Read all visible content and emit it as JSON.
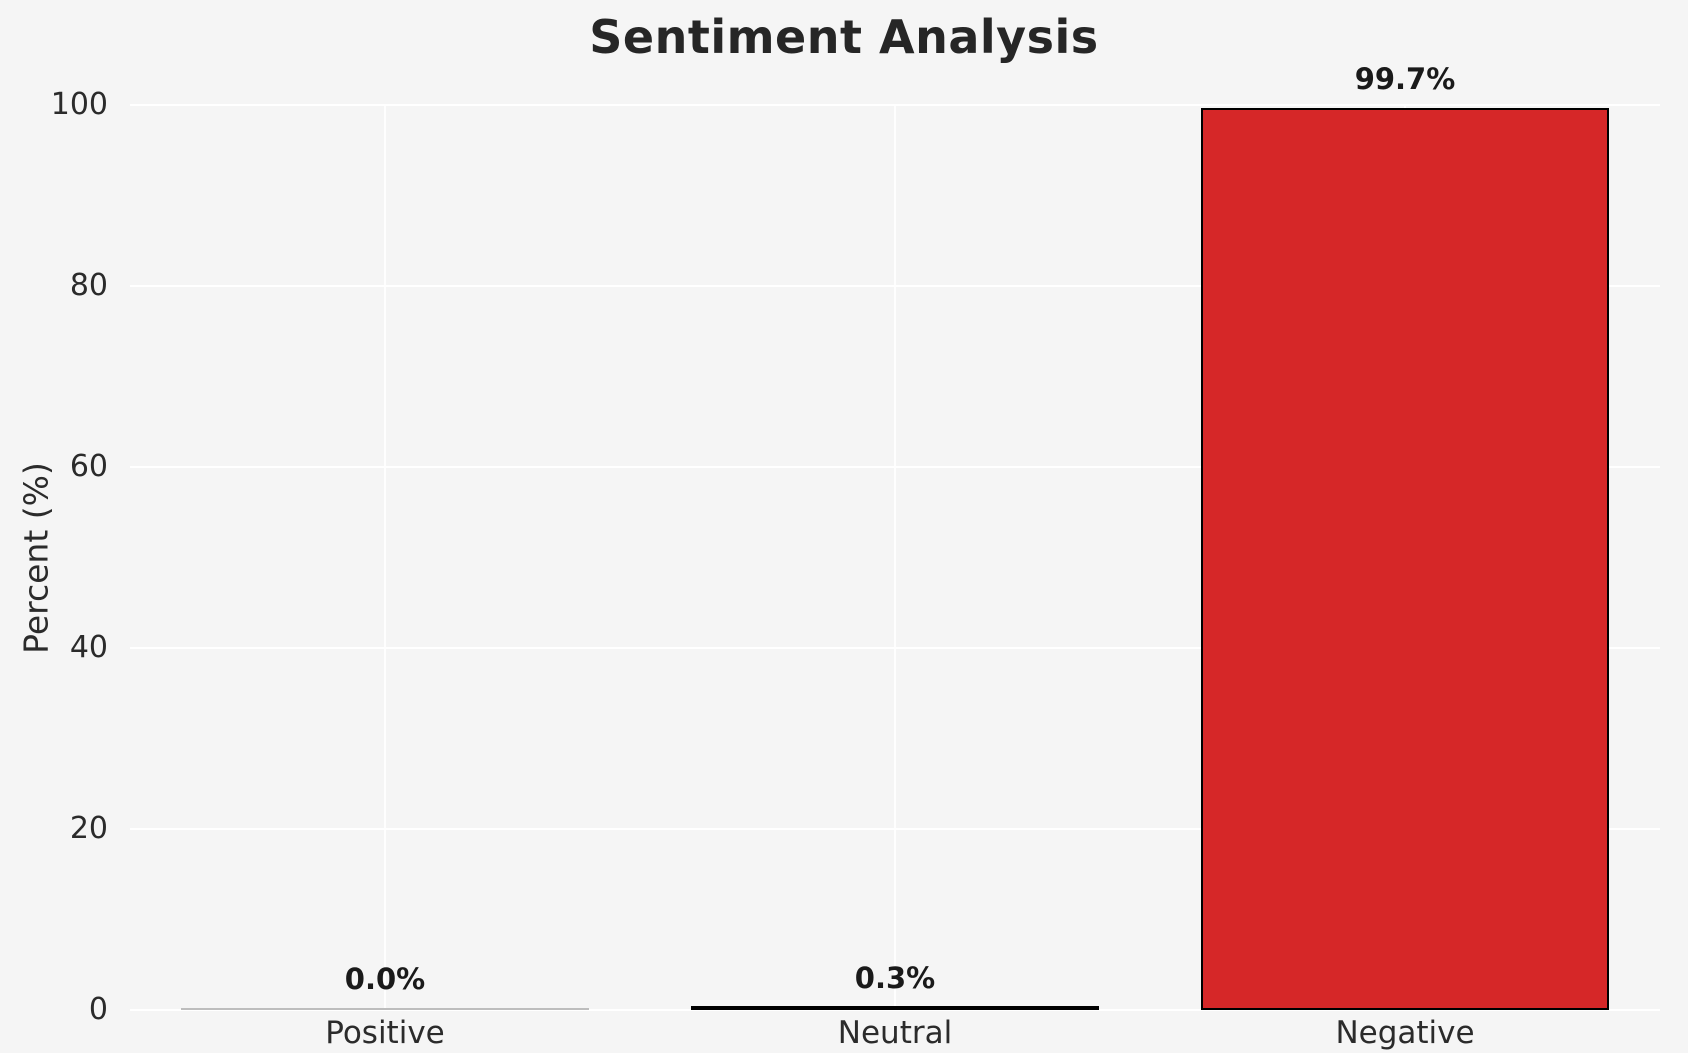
{
  "chart_data": {
    "type": "bar",
    "title": "Sentiment Analysis",
    "xlabel": "",
    "ylabel": "Percent (%)",
    "categories": [
      "Positive",
      "Neutral",
      "Negative"
    ],
    "values": [
      0.0,
      0.3,
      99.7
    ],
    "value_labels": [
      "0.0%",
      "0.3%",
      "99.7%"
    ],
    "bar_colors": [
      "#bdbdbd",
      "#1a1a1a",
      "#d62728"
    ],
    "bar_edge_color": "#000000",
    "ylim": [
      0,
      100
    ],
    "yticks": [
      0,
      20,
      40,
      60,
      80,
      100
    ],
    "grid": true,
    "legend": "none",
    "background_color": "#f5f5f5",
    "gridline_color": "#ffffff"
  }
}
